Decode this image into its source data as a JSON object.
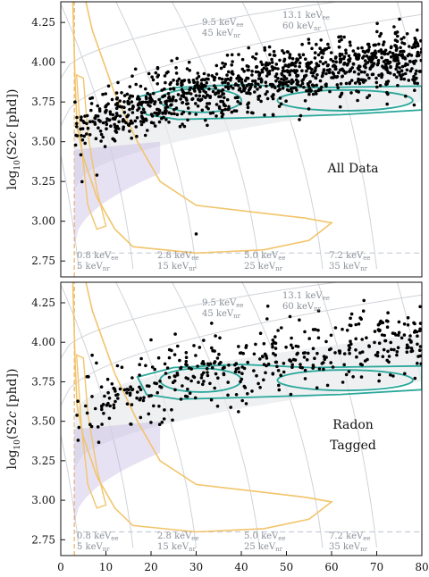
{
  "chart_data": [
    {
      "type": "scatter",
      "panel_label": "All Data",
      "ylabel_main": "log",
      "ylabel_sub": "10",
      "ylabel_rest": "(S2",
      "ylabel_italic": "c",
      "ylabel_end": " [phd])",
      "xlim": [
        0,
        80
      ],
      "ylim": [
        2.65,
        4.38
      ],
      "yticks": [
        "2.75",
        "3.00",
        "3.25",
        "3.50",
        "3.75",
        "4.00",
        "4.25"
      ],
      "xticks": [],
      "grid": true,
      "energy_labels": [
        {
          "top": "13.1 keV",
          "top_sub": "ee",
          "bot": "60 keV",
          "bot_sub": "nr"
        },
        {
          "top": "9.5 keV",
          "top_sub": "ee",
          "bot": "45 keV",
          "bot_sub": "nr"
        },
        {
          "top": "0.8 keV",
          "top_sub": "ee",
          "bot": "5 keV",
          "bot_sub": "nr"
        },
        {
          "top": "2.8 keV",
          "top_sub": "ee",
          "bot": "15 keV",
          "bot_sub": "nr"
        },
        {
          "top": "5.0 keV",
          "top_sub": "ee",
          "bot": "25 keV",
          "bot_sub": "nr"
        },
        {
          "top": "7.2 keV",
          "top_sub": "ee",
          "bot": "35 keV",
          "bot_sub": "nr"
        }
      ],
      "n_points": 1100,
      "outliers": [
        [
          30,
          2.92
        ],
        [
          8,
          3.29
        ]
      ],
      "colors": {
        "points": "#000000",
        "contour_nr": "#f2c46b",
        "contour_ee": "#2aa79b",
        "band": "#b9a8e0",
        "grid": "#cfd3d8"
      }
    },
    {
      "type": "scatter",
      "panel_label": "Radon",
      "panel_label2": "Tagged",
      "ylabel_main": "log",
      "ylabel_sub": "10",
      "ylabel_rest": "(S2",
      "ylabel_italic": "c",
      "ylabel_end": " [phd])",
      "xlim": [
        0,
        80
      ],
      "ylim": [
        2.65,
        4.38
      ],
      "yticks": [
        "2.75",
        "3.00",
        "3.25",
        "3.50",
        "3.75",
        "4.00",
        "4.25"
      ],
      "xticks": [
        "0",
        "10",
        "20",
        "30",
        "40",
        "50",
        "60",
        "70",
        "80"
      ],
      "grid": true,
      "energy_labels": [
        {
          "top": "13.1 keV",
          "top_sub": "ee",
          "bot": "60 keV",
          "bot_sub": "nr"
        },
        {
          "top": "9.5 keV",
          "top_sub": "ee",
          "bot": "45 keV",
          "bot_sub": "nr"
        },
        {
          "top": "0.8 keV",
          "top_sub": "ee",
          "bot": "5 keV",
          "bot_sub": "nr"
        },
        {
          "top": "2.8 keV",
          "top_sub": "ee",
          "bot": "15 keV",
          "bot_sub": "nr"
        },
        {
          "top": "5.0 keV",
          "top_sub": "ee",
          "bot": "25 keV",
          "bot_sub": "nr"
        },
        {
          "top": "7.2 keV",
          "top_sub": "ee",
          "bot": "35 keV",
          "bot_sub": "nr"
        }
      ],
      "n_points": 430,
      "outliers": [],
      "colors": {
        "points": "#000000",
        "contour_nr": "#f2c46b",
        "contour_ee": "#2aa79b",
        "band": "#b9a8e0",
        "grid": "#cfd3d8"
      }
    }
  ]
}
